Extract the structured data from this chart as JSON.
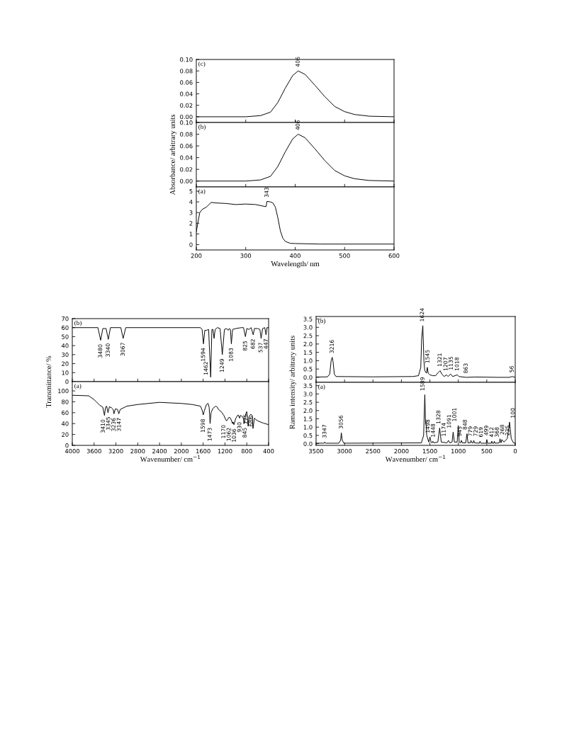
{
  "chart_data": [
    {
      "type": "line",
      "annotations": [
        "(c)",
        {
          "text": "406",
          "x": 406,
          "y": 0.08
        }
      ],
      "xlim": [
        200,
        600
      ],
      "xticks": [
        200,
        300,
        400,
        500,
        600
      ],
      "ylim": [
        -0.01,
        0.1
      ],
      "yticks": [
        {
          "value": 0,
          "label": "0.00"
        },
        {
          "value": 0.02,
          "label": "0.02"
        },
        {
          "value": 0.04,
          "label": "0.04"
        },
        {
          "value": 0.06,
          "label": "0.06"
        },
        {
          "value": 0.08,
          "label": "0.08"
        },
        {
          "value": 0.1,
          "label": "0.10"
        }
      ],
      "tick_labels": "y",
      "x": [
        200,
        300,
        330,
        350,
        365,
        380,
        395,
        406,
        420,
        440,
        460,
        480,
        500,
        520,
        550,
        600
      ],
      "series": [
        {
          "color": "#000000",
          "values": [
            0,
            0,
            0.002,
            0.008,
            0.025,
            0.05,
            0.072,
            0.08,
            0.074,
            0.055,
            0.035,
            0.018,
            0.009,
            0.004,
            0.001,
            0
          ]
        }
      ]
    },
    {
      "type": "line",
      "ylabel": "Absorbance/ arbitrary units",
      "annotations": [
        "(b)",
        {
          "text": "406",
          "x": 406,
          "y": 0.08
        }
      ],
      "xlim": [
        200,
        600
      ],
      "xticks": [
        200,
        300,
        400,
        500,
        600
      ],
      "ylim": [
        -0.01,
        0.1
      ],
      "yticks": [
        {
          "value": 0,
          "label": "0.00"
        },
        {
          "value": 0.02,
          "label": "0.02"
        },
        {
          "value": 0.04,
          "label": "0.04"
        },
        {
          "value": 0.06,
          "label": "0.06"
        },
        {
          "value": 0.08,
          "label": "0.08"
        },
        {
          "value": 0.1,
          "label": "0.10"
        }
      ],
      "tick_labels": "y",
      "x": [
        200,
        300,
        330,
        350,
        365,
        380,
        395,
        406,
        420,
        440,
        460,
        480,
        500,
        520,
        550,
        600
      ],
      "series": [
        {
          "color": "#000000",
          "values": [
            0,
            0,
            0.002,
            0.008,
            0.025,
            0.05,
            0.072,
            0.08,
            0.074,
            0.055,
            0.035,
            0.018,
            0.009,
            0.004,
            0.001,
            0
          ]
        }
      ]
    },
    {
      "type": "line",
      "xlabel": "Wavelength/ nm",
      "annotations": [
        "(a)",
        {
          "text": "343",
          "x": 343,
          "y": 4.05
        }
      ],
      "xlim": [
        200,
        600
      ],
      "xticks": [
        200,
        300,
        400,
        500,
        600
      ],
      "ylim": [
        -0.5,
        5.4
      ],
      "yticks": [
        0,
        1,
        2,
        3,
        4,
        5
      ],
      "x": [
        200,
        203,
        207,
        212,
        220,
        230,
        240,
        260,
        280,
        300,
        320,
        341,
        343,
        350,
        355,
        360,
        365,
        370,
        375,
        380,
        390,
        400,
        450,
        600
      ],
      "series": [
        {
          "color": "#000000",
          "values": [
            1.2,
            2,
            3,
            3.3,
            3.5,
            3.95,
            3.9,
            3.85,
            3.75,
            3.8,
            3.75,
            3.55,
            4.05,
            4.0,
            3.9,
            3.5,
            2.5,
            1.3,
            0.6,
            0.3,
            0.12,
            0.1,
            0.05,
            0.05
          ]
        }
      ]
    },
    {
      "type": "line",
      "ylabel": "Transmittance/ %",
      "annotations": [
        "(b)",
        {
          "text": "3480",
          "x": 3480,
          "y": 46
        },
        {
          "text": "3340",
          "x": 3340,
          "y": 47
        },
        {
          "text": "3067",
          "x": 3067,
          "y": 48
        },
        {
          "text": "1594",
          "x": 1594,
          "y": 42
        },
        {
          "text": "1462",
          "x": 1462,
          "y": 5
        },
        {
          "text": "1249",
          "x": 1249,
          "y": 30
        },
        {
          "text": "1083",
          "x": 1083,
          "y": 42
        },
        {
          "text": "825",
          "x": 825,
          "y": 50
        },
        {
          "text": "682",
          "x": 682,
          "y": 52
        },
        {
          "text": "537",
          "x": 537,
          "y": 48
        },
        {
          "text": "447",
          "x": 447,
          "y": 52
        }
      ],
      "xlim": [
        4000,
        400
      ],
      "xticks": [
        4000,
        3600,
        3200,
        2800,
        2400,
        2000,
        1600,
        1200,
        800,
        400
      ],
      "ylim": [
        0,
        70
      ],
      "yticks": [
        0,
        10,
        20,
        30,
        40,
        50,
        60,
        70
      ],
      "tick_labels": "y",
      "x": [
        4000,
        3530,
        3480,
        3440,
        3380,
        3340,
        3300,
        3110,
        3067,
        3020,
        1650,
        1620,
        1594,
        1570,
        1540,
        1500,
        1462,
        1440,
        1420,
        1400,
        1380,
        1340,
        1290,
        1249,
        1210,
        1170,
        1140,
        1120,
        1100,
        1083,
        1060,
        1000,
        900,
        860,
        825,
        800,
        760,
        720,
        682,
        660,
        600,
        560,
        537,
        510,
        470,
        447,
        430,
        400
      ],
      "series": [
        {
          "color": "#000000",
          "values": [
            60,
            60,
            46,
            59,
            59,
            47,
            60,
            60,
            48,
            60,
            60,
            58,
            42,
            57,
            57,
            58,
            5,
            58,
            58,
            48,
            58,
            60,
            59,
            30,
            58,
            59,
            57,
            59,
            58,
            42,
            58,
            59,
            60,
            60,
            50,
            59,
            58,
            60,
            52,
            59,
            59,
            58,
            48,
            59,
            60,
            52,
            60,
            60
          ]
        }
      ]
    },
    {
      "type": "line",
      "xlabel": "Wavenumber/ cm$^{−1}$",
      "annotations": [
        "(a)",
        {
          "text": "3410",
          "x": 3410,
          "y": 55
        },
        {
          "text": "3345",
          "x": 3345,
          "y": 60
        },
        {
          "text": "3236",
          "x": 3236,
          "y": 58
        },
        {
          "text": "3147",
          "x": 3147,
          "y": 58
        },
        {
          "text": "1598",
          "x": 1598,
          "y": 56
        },
        {
          "text": "1473",
          "x": 1473,
          "y": 40
        },
        {
          "text": "1170",
          "x": 1170,
          "y": 45
        },
        {
          "text": "1062",
          "x": 1062,
          "y": 40
        },
        {
          "text": "1036",
          "x": 1036,
          "y": 38
        },
        {
          "text": "930",
          "x": 930,
          "y": 50
        },
        {
          "text": "845",
          "x": 845,
          "y": 40
        },
        {
          "text": "775",
          "x": 775,
          "y": 35
        },
        {
          "text": "686",
          "x": 686,
          "y": 31
        }
      ],
      "xlim": [
        4000,
        400
      ],
      "xticks": [
        4000,
        3600,
        3200,
        2800,
        2400,
        2000,
        1600,
        1200,
        800,
        400
      ],
      "ylim": [
        0,
        117
      ],
      "yticks": [
        0,
        20,
        40,
        60,
        80,
        100
      ],
      "x": [
        4000,
        3700,
        3600,
        3500,
        3440,
        3410,
        3390,
        3370,
        3345,
        3320,
        3280,
        3250,
        3236,
        3210,
        3170,
        3147,
        3120,
        3000,
        2800,
        2400,
        2000,
        1800,
        1650,
        1620,
        1598,
        1580,
        1540,
        1510,
        1490,
        1473,
        1455,
        1420,
        1370,
        1340,
        1320,
        1270,
        1220,
        1190,
        1170,
        1150,
        1120,
        1090,
        1062,
        1050,
        1036,
        1000,
        960,
        930,
        920,
        900,
        870,
        845,
        820,
        800,
        775,
        760,
        730,
        700,
        686,
        660,
        640,
        600,
        500,
        400
      ],
      "series": [
        {
          "color": "#000000",
          "values": [
            92,
            91,
            84,
            74,
            70,
            55,
            70,
            72,
            60,
            71,
            69,
            66,
            58,
            67,
            66,
            58,
            66,
            72,
            75,
            79,
            77,
            75,
            72,
            65,
            56,
            63,
            75,
            77,
            70,
            40,
            60,
            68,
            72,
            70,
            66,
            62,
            55,
            48,
            45,
            48,
            52,
            48,
            40,
            43,
            38,
            50,
            56,
            50,
            55,
            54,
            52,
            40,
            58,
            62,
            35,
            52,
            57,
            55,
            31,
            50,
            48,
            45,
            41,
            38
          ]
        }
      ]
    },
    {
      "type": "line",
      "ylabel": "Raman intensity/ arbitrary units",
      "annotations": [
        "(b)",
        {
          "text": "3216",
          "x": 3216,
          "y": 1.2
        },
        {
          "text": "1624",
          "x": 1624,
          "y": 3.1
        },
        {
          "text": "1545",
          "x": 1545,
          "y": 0.6
        },
        {
          "text": "1321",
          "x": 1321,
          "y": 0.4
        },
        {
          "text": "1207",
          "x": 1207,
          "y": 0.15
        },
        {
          "text": "1135",
          "x": 1135,
          "y": 0.2
        },
        {
          "text": "1018",
          "x": 1018,
          "y": 0.15
        },
        {
          "text": "863",
          "x": 863,
          "y": 0.0
        },
        {
          "text": "56",
          "x": 56,
          "y": 0.05
        }
      ],
      "xlim": [
        3500,
        0
      ],
      "xticks": [
        3500,
        3000,
        2500,
        2000,
        1500,
        1000,
        500,
        0
      ],
      "ylim": [
        -0.3,
        3.65
      ],
      "yticks": [
        {
          "value": 0,
          "label": "0.0"
        },
        {
          "value": 0.5,
          "label": "0.5"
        },
        {
          "value": 1,
          "label": "1.0"
        },
        {
          "value": 1.5,
          "label": "1.5"
        },
        {
          "value": 2,
          "label": "2.0"
        },
        {
          "value": 2.5,
          "label": "2.5"
        },
        {
          "value": 3,
          "label": "3.0"
        },
        {
          "value": 3.5,
          "label": "3.5"
        }
      ],
      "tick_labels": "y",
      "x": [
        3500,
        3300,
        3260,
        3235,
        3216,
        3200,
        3180,
        3150,
        2500,
        1800,
        1700,
        1660,
        1645,
        1624,
        1605,
        1590,
        1560,
        1545,
        1530,
        1500,
        1450,
        1400,
        1350,
        1321,
        1290,
        1250,
        1207,
        1180,
        1135,
        1100,
        1018,
        990,
        863,
        700,
        300,
        100,
        56,
        0
      ],
      "series": [
        {
          "color": "#000000",
          "values": [
            0.02,
            0.03,
            0.2,
            1.0,
            1.2,
            0.9,
            0.2,
            0.05,
            0.03,
            0.05,
            0.1,
            0.6,
            2.3,
            3.1,
            1.0,
            0.4,
            0.25,
            0.6,
            0.25,
            0.15,
            0.1,
            0.1,
            0.3,
            0.4,
            0.2,
            0.05,
            0.15,
            0.05,
            0.2,
            0.05,
            0.15,
            0.05,
            0.0,
            0.02,
            0.0,
            0.0,
            0.05,
            0.0
          ]
        }
      ]
    },
    {
      "type": "line",
      "xlabel": "Wavenumber/ cm$^{−1}$",
      "annotations": [
        "(a)",
        {
          "text": "3347",
          "x": 3347,
          "y": 0.1
        },
        {
          "text": "3056",
          "x": 3056,
          "y": 0.65
        },
        {
          "text": "1589",
          "x": 1589,
          "y": 2.95
        },
        {
          "text": "1498",
          "x": 1498,
          "y": 0.4
        },
        {
          "text": "1448",
          "x": 1448,
          "y": 0.15
        },
        {
          "text": "1328",
          "x": 1328,
          "y": 0.95
        },
        {
          "text": "1174",
          "x": 1174,
          "y": 0.2
        },
        {
          "text": "1091",
          "x": 1091,
          "y": 0.7
        },
        {
          "text": "1001",
          "x": 1001,
          "y": 1.1
        },
        {
          "text": "945",
          "x": 945,
          "y": 0.2
        },
        {
          "text": "848",
          "x": 848,
          "y": 0.6
        },
        {
          "text": "779",
          "x": 779,
          "y": 0.2
        },
        {
          "text": "729",
          "x": 729,
          "y": 0.2
        },
        {
          "text": "619",
          "x": 619,
          "y": 0.15
        },
        {
          "text": "499",
          "x": 499,
          "y": 0.25
        },
        {
          "text": "412",
          "x": 412,
          "y": 0.15
        },
        {
          "text": "368",
          "x": 368,
          "y": 0.15
        },
        {
          "text": "268",
          "x": 268,
          "y": 0.3
        },
        {
          "text": "235",
          "x": 235,
          "y": 0.25
        },
        {
          "text": "100",
          "x": 100,
          "y": 1.3
        }
      ],
      "xlim": [
        3500,
        0
      ],
      "xticks": [
        3500,
        3000,
        2500,
        2000,
        1500,
        1000,
        500,
        0
      ],
      "ylim": [
        -0.1,
        3.7
      ],
      "yticks": [
        {
          "value": 0,
          "label": "0.0"
        },
        {
          "value": 0.5,
          "label": "0.5"
        },
        {
          "value": 1,
          "label": "1.0"
        },
        {
          "value": 1.5,
          "label": "1.5"
        },
        {
          "value": 2,
          "label": "2.0"
        },
        {
          "value": 2.5,
          "label": "2.5"
        },
        {
          "value": 3,
          "label": "3.0"
        },
        {
          "value": 3.5,
          "label": "3.5"
        }
      ],
      "x": [
        3500,
        3360,
        3347,
        3335,
        3100,
        3070,
        3056,
        3040,
        3010,
        1650,
        1610,
        1589,
        1575,
        1570,
        1555,
        1520,
        1498,
        1480,
        1460,
        1448,
        1430,
        1360,
        1328,
        1300,
        1200,
        1174,
        1150,
        1110,
        1091,
        1070,
        1020,
        1001,
        985,
        960,
        945,
        930,
        870,
        848,
        830,
        790,
        779,
        760,
        740,
        729,
        715,
        630,
        619,
        605,
        510,
        499,
        485,
        420,
        412,
        400,
        375,
        368,
        355,
        280,
        268,
        250,
        235,
        200,
        140,
        100,
        70,
        30,
        0
      ],
      "series": [
        {
          "color": "#000000",
          "values": [
            0.03,
            0.03,
            0.1,
            0.03,
            0.03,
            0.2,
            0.65,
            0.2,
            0.03,
            0.05,
            0.5,
            2.95,
            1.2,
            1.35,
            0.5,
            0.1,
            0.4,
            0.1,
            0.05,
            0.15,
            0.05,
            0.1,
            0.95,
            0.1,
            0.05,
            0.2,
            0.05,
            0.1,
            0.7,
            0.1,
            0.1,
            1.1,
            0.1,
            0.05,
            0.2,
            0.05,
            0.05,
            0.6,
            0.05,
            0.05,
            0.2,
            0.05,
            0.05,
            0.2,
            0.05,
            0.03,
            0.15,
            0.03,
            0.03,
            0.25,
            0.03,
            0.03,
            0.15,
            0.03,
            0.03,
            0.15,
            0.03,
            0.05,
            0.3,
            0.05,
            0.25,
            0.1,
            0.3,
            1.3,
            0.3,
            0.05,
            0.03
          ]
        }
      ]
    }
  ]
}
